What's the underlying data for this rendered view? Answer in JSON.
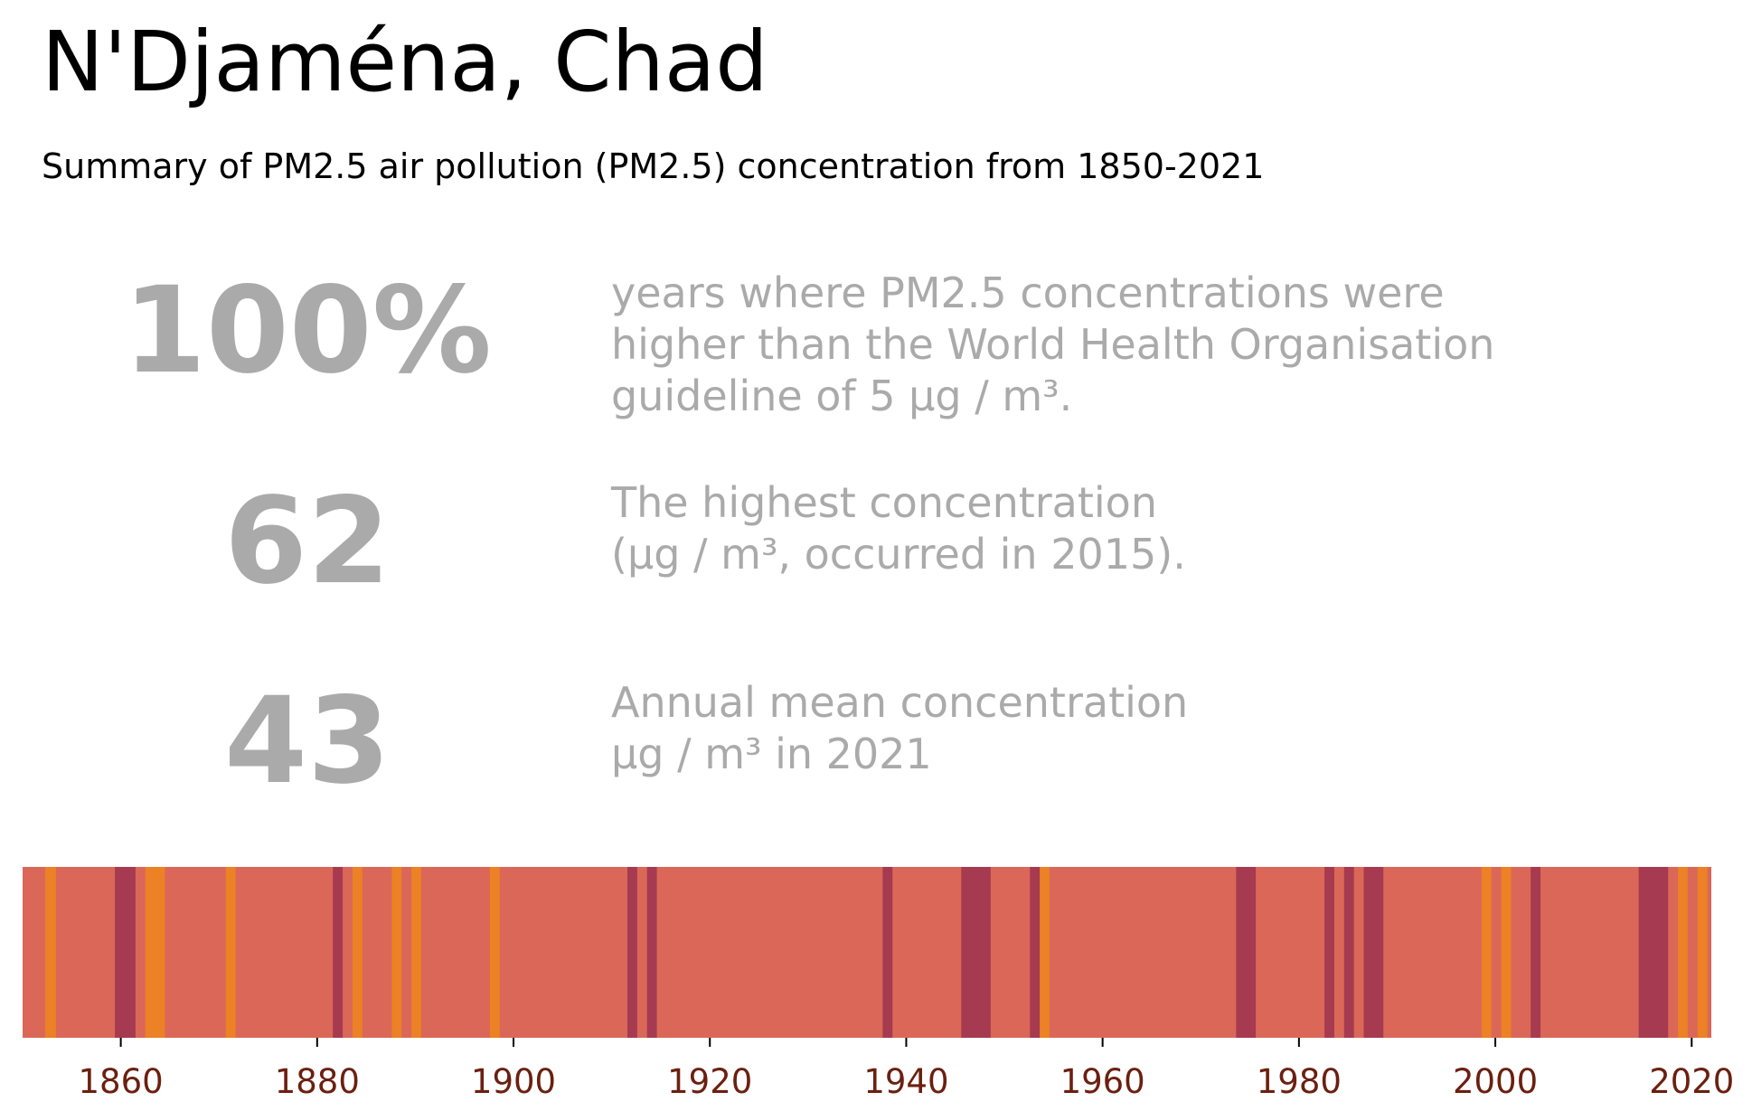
{
  "header": {
    "title": "N'Djaména, Chad",
    "subtitle": "Summary of PM2.5 air pollution (PM2.5) concentration from 1850-2021"
  },
  "stats": [
    {
      "value": "100%",
      "lines": [
        "years where PM2.5 concentrations were",
        "higher than the World Health Organisation",
        "guideline of 5 µg / m³."
      ]
    },
    {
      "value": "62",
      "lines": [
        "The highest concentration",
        "(µg / m³, occurred in 2015)."
      ]
    },
    {
      "value": "43",
      "lines": [
        "Annual mean concentration",
        "µg / m³ in 2021"
      ]
    }
  ],
  "colors": {
    "stat_text": "#aaaaaa",
    "tick_label": "#6b2010",
    "category_colors": {
      "base": "#db6758",
      "low": "#ec8125",
      "high": "#a53a50"
    }
  },
  "chart_data": {
    "type": "heatmap",
    "title": "",
    "xlabel": "",
    "ylabel": "",
    "x_range": [
      1850,
      2022
    ],
    "xticks": [
      1860,
      1880,
      1900,
      1920,
      1940,
      1960,
      1980,
      2000,
      2020
    ],
    "default_category": "base",
    "stripes": [
      {
        "start": 1852.3,
        "end": 1853.4,
        "category": "low"
      },
      {
        "start": 1859.4,
        "end": 1861.5,
        "category": "high"
      },
      {
        "start": 1862.5,
        "end": 1864.5,
        "category": "low"
      },
      {
        "start": 1870.7,
        "end": 1871.7,
        "category": "low"
      },
      {
        "start": 1881.6,
        "end": 1882.6,
        "category": "high"
      },
      {
        "start": 1883.6,
        "end": 1884.6,
        "category": "low"
      },
      {
        "start": 1887.6,
        "end": 1888.6,
        "category": "low"
      },
      {
        "start": 1889.6,
        "end": 1890.6,
        "category": "low"
      },
      {
        "start": 1897.6,
        "end": 1898.6,
        "category": "low"
      },
      {
        "start": 1911.6,
        "end": 1912.6,
        "category": "high"
      },
      {
        "start": 1913.6,
        "end": 1914.6,
        "category": "high"
      },
      {
        "start": 1937.6,
        "end": 1938.6,
        "category": "high"
      },
      {
        "start": 1945.6,
        "end": 1948.6,
        "category": "high"
      },
      {
        "start": 1952.6,
        "end": 1953.6,
        "category": "high"
      },
      {
        "start": 1953.6,
        "end": 1954.6,
        "category": "low"
      },
      {
        "start": 1973.6,
        "end": 1975.6,
        "category": "high"
      },
      {
        "start": 1982.6,
        "end": 1983.6,
        "category": "high"
      },
      {
        "start": 1984.6,
        "end": 1985.6,
        "category": "high"
      },
      {
        "start": 1986.6,
        "end": 1988.6,
        "category": "high"
      },
      {
        "start": 1998.6,
        "end": 1999.6,
        "category": "low"
      },
      {
        "start": 2000.6,
        "end": 2001.6,
        "category": "low"
      },
      {
        "start": 2003.6,
        "end": 2004.6,
        "category": "high"
      },
      {
        "start": 2014.6,
        "end": 2017.6,
        "category": "high"
      },
      {
        "start": 2018.6,
        "end": 2019.6,
        "category": "low"
      },
      {
        "start": 2020.6,
        "end": 2021.6,
        "category": "low"
      }
    ]
  }
}
